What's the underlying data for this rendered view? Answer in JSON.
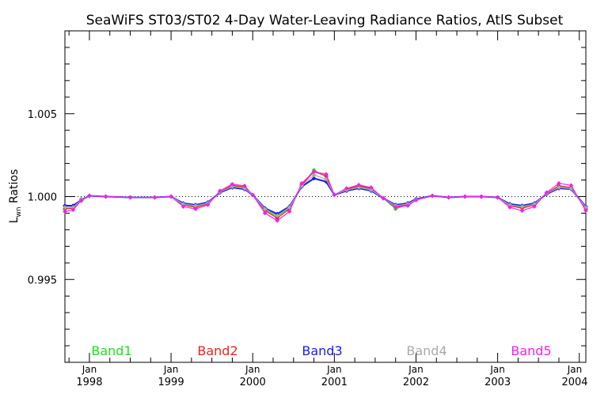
{
  "chart_data": {
    "type": "line",
    "title": "SeaWiFS ST03/ST02 4-Day Water-Leaving Radiance Ratios, AtlS Subset",
    "ylabel_main": "L",
    "ylabel_sub": "wn",
    "ylabel_rest": " Ratios",
    "xlabel": "",
    "ylim": [
      0.99,
      1.01
    ],
    "xlim": [
      1997.7,
      2004.08
    ],
    "y_ticks": [
      "0.995",
      "1.000",
      "1.005"
    ],
    "y_tick_values": [
      0.995,
      1.0,
      1.005
    ],
    "x_ticks_top": [
      "Jan",
      "Jan",
      "Jan",
      "Jan",
      "Jan",
      "Jan",
      "Jan"
    ],
    "x_ticks_bottom": [
      "1998",
      "1999",
      "2000",
      "2001",
      "2002",
      "2003",
      "2004"
    ],
    "x_tick_values": [
      1998,
      1999,
      2000,
      2001,
      2002,
      2003,
      2004
    ],
    "reference_line": 1.0,
    "grid": false,
    "legend_placement": "bottom",
    "series": [
      {
        "name": "Band1",
        "color": "#22dd22",
        "offset": 0.0,
        "x": [
          1997.7,
          1997.8,
          1997.9,
          1998.0,
          1998.2,
          1998.5,
          1998.8,
          1999.0,
          1999.15,
          1999.3,
          1999.45,
          1999.6,
          1999.75,
          1999.9,
          2000.0,
          2000.15,
          2000.3,
          2000.45,
          2000.6,
          2000.75,
          2000.9,
          2001.0,
          2001.15,
          2001.3,
          2001.45,
          2001.6,
          2001.75,
          2001.9,
          2002.0,
          2002.2,
          2002.4,
          2002.6,
          2002.8,
          2003.0,
          2003.15,
          2003.3,
          2003.45,
          2003.6,
          2003.75,
          2003.9,
          2004.08
        ],
        "y": [
          0.9993,
          0.99935,
          0.99985,
          1.00005,
          1.0,
          0.99995,
          0.99995,
          1.0,
          0.99955,
          0.9994,
          0.9996,
          1.0003,
          1.00065,
          1.00055,
          1.0001,
          0.9992,
          0.9988,
          0.9993,
          1.0007,
          1.0016,
          1.0012,
          1.0001,
          1.0004,
          1.0006,
          1.00045,
          0.9999,
          0.99925,
          0.99955,
          0.9998,
          1.00005,
          0.99995,
          1.0,
          1.0,
          0.99995,
          0.9995,
          0.99935,
          0.99955,
          1.0002,
          1.0006,
          1.0005,
          0.9993
        ]
      },
      {
        "name": "Band2",
        "color": "#ee2222",
        "offset": -2e-05,
        "x": [
          1997.7,
          1997.8,
          1997.9,
          1998.0,
          1998.2,
          1998.5,
          1998.8,
          1999.0,
          1999.15,
          1999.3,
          1999.45,
          1999.6,
          1999.75,
          1999.9,
          2000.0,
          2000.15,
          2000.3,
          2000.45,
          2000.6,
          2000.75,
          2000.9,
          2001.0,
          2001.15,
          2001.3,
          2001.45,
          2001.6,
          2001.75,
          2001.9,
          2002.0,
          2002.2,
          2002.4,
          2002.6,
          2002.8,
          2003.0,
          2003.15,
          2003.3,
          2003.45,
          2003.6,
          2003.75,
          2003.9,
          2004.08
        ],
        "y": [
          0.99925,
          0.9993,
          0.9998,
          1.00005,
          1.0,
          0.99995,
          0.99995,
          1.0,
          0.9995,
          0.99935,
          0.99955,
          1.0003,
          1.00068,
          1.00058,
          1.0001,
          0.99915,
          0.9987,
          0.99925,
          1.0007,
          1.0015,
          1.00125,
          1.0001,
          1.00045,
          1.00065,
          1.0005,
          0.9999,
          0.9994,
          0.9995,
          0.9998,
          1.00005,
          0.99995,
          1.0,
          1.0,
          0.99995,
          0.99945,
          0.9993,
          0.9995,
          1.0002,
          1.00065,
          1.00055,
          0.99925
        ]
      },
      {
        "name": "Band3",
        "color": "#1a1aee",
        "offset": 0.0,
        "x": [
          1997.7,
          1997.8,
          1997.9,
          1998.0,
          1998.2,
          1998.5,
          1998.8,
          1999.0,
          1999.15,
          1999.3,
          1999.45,
          1999.6,
          1999.75,
          1999.9,
          2000.0,
          2000.15,
          2000.3,
          2000.45,
          2000.6,
          2000.75,
          2000.9,
          2001.0,
          2001.15,
          2001.3,
          2001.45,
          2001.6,
          2001.75,
          2001.9,
          2002.0,
          2002.2,
          2002.4,
          2002.6,
          2002.8,
          2003.0,
          2003.15,
          2003.3,
          2003.45,
          2003.6,
          2003.75,
          2003.9,
          2004.08
        ],
        "y": [
          0.99945,
          0.99945,
          0.9998,
          1.00005,
          1.0,
          0.99995,
          0.99995,
          1.0,
          0.9996,
          0.9995,
          0.99965,
          1.00025,
          1.00055,
          1.00045,
          1.0001,
          0.9993,
          0.99895,
          0.9994,
          1.0006,
          1.0011,
          1.0009,
          1.0001,
          1.00035,
          1.0005,
          1.00035,
          0.9999,
          0.9995,
          0.9996,
          0.99985,
          1.00005,
          0.99995,
          1.0,
          1.0,
          0.99995,
          0.99955,
          0.99945,
          0.9996,
          1.00015,
          1.0005,
          1.00045,
          0.9994
        ]
      },
      {
        "name": "Band4",
        "color": "#aaaaaa",
        "offset": 0.0,
        "x": [
          1997.7,
          1997.8,
          1997.9,
          1998.0,
          1998.2,
          1998.5,
          1998.8,
          1999.0,
          1999.15,
          1999.3,
          1999.45,
          1999.6,
          1999.75,
          1999.9,
          2000.0,
          2000.15,
          2000.3,
          2000.45,
          2000.6,
          2000.75,
          2000.9,
          2001.0,
          2001.15,
          2001.3,
          2001.45,
          2001.6,
          2001.75,
          2001.9,
          2002.0,
          2002.2,
          2002.4,
          2002.6,
          2002.8,
          2003.0,
          2003.15,
          2003.3,
          2003.45,
          2003.6,
          2003.75,
          2003.9,
          2004.08
        ],
        "y": [
          0.99935,
          0.99935,
          0.9998,
          1.00005,
          1.0,
          0.99995,
          0.99995,
          1.0,
          0.99955,
          0.99945,
          0.9996,
          1.00028,
          1.0006,
          1.0005,
          1.0001,
          0.99925,
          0.99885,
          0.99935,
          1.00065,
          1.0013,
          1.00105,
          1.0001,
          1.0004,
          1.00055,
          1.0004,
          0.9999,
          0.99945,
          0.99955,
          0.99982,
          1.00005,
          0.99995,
          1.0,
          1.0,
          0.99995,
          0.9995,
          0.9994,
          0.99955,
          1.00018,
          1.00055,
          1.00048,
          0.99935
        ]
      },
      {
        "name": "Band5",
        "color": "#ee22ee",
        "offset": 0.0,
        "x": [
          1997.7,
          1997.8,
          1997.9,
          1998.0,
          1998.2,
          1998.5,
          1998.8,
          1999.0,
          1999.15,
          1999.3,
          1999.45,
          1999.6,
          1999.75,
          1999.9,
          2000.0,
          2000.15,
          2000.3,
          2000.45,
          2000.6,
          2000.75,
          2000.9,
          2001.0,
          2001.15,
          2001.3,
          2001.45,
          2001.6,
          2001.75,
          2001.9,
          2002.0,
          2002.2,
          2002.4,
          2002.6,
          2002.8,
          2003.0,
          2003.15,
          2003.3,
          2003.45,
          2003.6,
          2003.75,
          2003.9,
          2004.08
        ],
        "y": [
          0.9991,
          0.9992,
          0.99975,
          1.00005,
          1.0,
          0.99995,
          0.99995,
          1.0,
          0.9994,
          0.99925,
          0.9995,
          1.00035,
          1.00075,
          1.00065,
          1.0001,
          0.999,
          0.99855,
          0.9991,
          1.0008,
          1.0015,
          1.00135,
          1.0001,
          1.0005,
          1.0007,
          1.00055,
          0.9999,
          0.99935,
          0.99945,
          0.99978,
          1.00005,
          0.99995,
          1.0,
          1.0,
          0.99995,
          0.99935,
          0.99915,
          0.9994,
          1.00025,
          1.0008,
          1.00068,
          0.99915
        ]
      }
    ]
  }
}
